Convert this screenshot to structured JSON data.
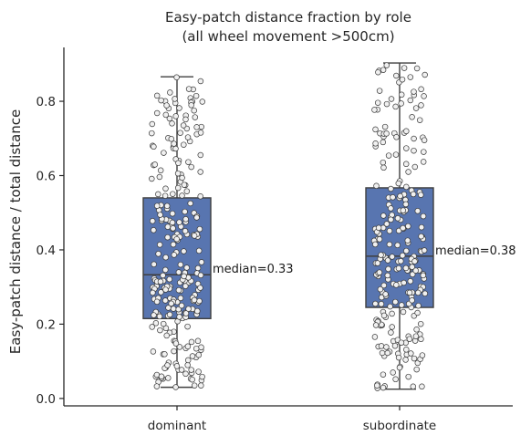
{
  "chart_data": {
    "type": "box",
    "title": "Easy-patch distance fraction by role",
    "subtitle": "(all wheel movement >500cm)",
    "xlabel": "",
    "ylabel": "Easy-patch distance / total distance",
    "ylim": [
      -0.02,
      0.945
    ],
    "yticks": [
      0.0,
      0.2,
      0.4,
      0.6,
      0.8
    ],
    "ytick_labels": [
      "0.0",
      "0.2",
      "0.4",
      "0.6",
      "0.8"
    ],
    "categories": [
      "dominant",
      "subordinate"
    ],
    "grid": false,
    "colors": {
      "box": "#5875b0",
      "box_edge": "#3f3f3f",
      "point_fill": "#f0f0f0",
      "point_edge": "#3a3a3a"
    },
    "boxes": [
      {
        "category": "dominant",
        "whisker_low": 0.03,
        "q1": 0.215,
        "median": 0.333,
        "q3": 0.54,
        "whisker_high": 0.866,
        "annotation": "median=0.33",
        "n_points": 260,
        "points_min": 0.03,
        "points_max": 0.866
      },
      {
        "category": "subordinate",
        "whisker_low": 0.025,
        "q1": 0.245,
        "median": 0.383,
        "q3": 0.567,
        "whisker_high": 0.903,
        "annotation": "median=0.38",
        "n_points": 240,
        "points_min": 0.025,
        "points_max": 0.903
      }
    ]
  }
}
